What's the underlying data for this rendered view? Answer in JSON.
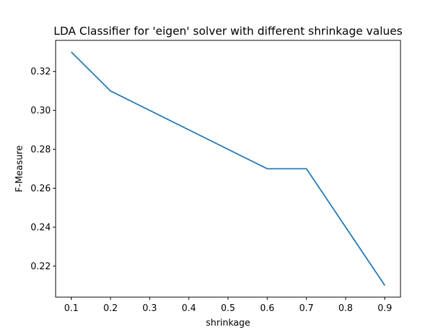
{
  "chart_data": {
    "type": "line",
    "title": "LDA Classifier for 'eigen' solver with different shrinkage values",
    "xlabel": "shrinkage",
    "ylabel": "F-Measure",
    "x": [
      0.1,
      0.2,
      0.6,
      0.7,
      0.9
    ],
    "series": [
      {
        "values": [
          0.33,
          0.31,
          0.27,
          0.27,
          0.21
        ],
        "color": "#1f77b4"
      }
    ],
    "xlim": [
      0.06,
      0.94
    ],
    "ylim": [
      0.204,
      0.336
    ],
    "xticks": [
      0.1,
      0.2,
      0.3,
      0.4,
      0.5,
      0.6,
      0.7,
      0.8,
      0.9
    ],
    "xtick_labels": [
      "0.1",
      "0.2",
      "0.3",
      "0.4",
      "0.5",
      "0.6",
      "0.7",
      "0.8",
      "0.9"
    ],
    "yticks": [
      0.22,
      0.24,
      0.26,
      0.28,
      0.3,
      0.32
    ],
    "ytick_labels": [
      "0.22",
      "0.24",
      "0.26",
      "0.28",
      "0.30",
      "0.32"
    ],
    "grid": false,
    "legend": false
  }
}
